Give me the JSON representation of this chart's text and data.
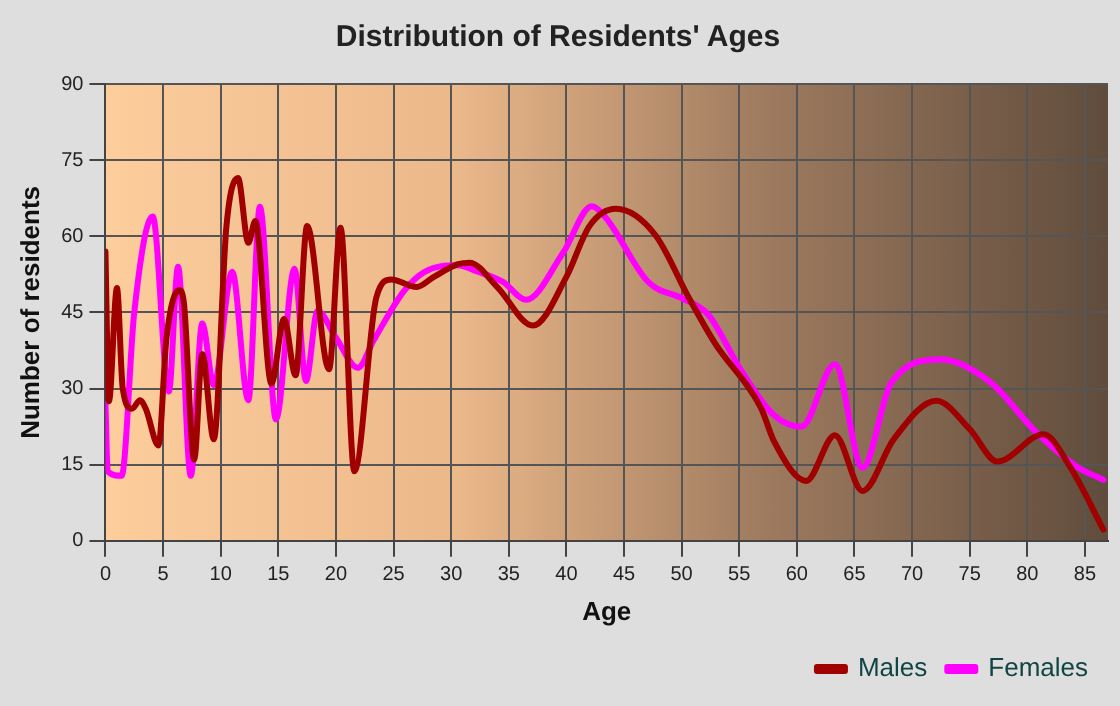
{
  "chart_data": {
    "type": "line",
    "title": "Distribution of Residents' Ages",
    "xlabel": "Age",
    "ylabel": "Number of residents",
    "xlim": [
      0,
      87
    ],
    "xticks": [
      0,
      5,
      10,
      15,
      20,
      25,
      30,
      35,
      40,
      45,
      50,
      55,
      60,
      65,
      70,
      75,
      80,
      85
    ],
    "ylim": [
      0,
      90
    ],
    "yticks": [
      0,
      15,
      30,
      45,
      60,
      75,
      90
    ],
    "grid": true,
    "legend": "bottom right",
    "marker": "none",
    "line_style": "solid",
    "series": [
      {
        "name": "Males",
        "color": "#a00000",
        "x": [
          0,
          0.3,
          1,
          1.5,
          2.3,
          3,
          3.5,
          4.6,
          5.3,
          6.4,
          6.8,
          7.7,
          8.4,
          9.4,
          10.5,
          11.5,
          12.4,
          13,
          14.4,
          15.5,
          16.5,
          17.5,
          19.4,
          20.4,
          21.6,
          23.5,
          24.8,
          27,
          28.5,
          30.6,
          31.6,
          34,
          37.1,
          40,
          42,
          44.3,
          47.7,
          50.6,
          52.9,
          56.9,
          58,
          60.8,
          63.3,
          65.7,
          68.4,
          72.1,
          75,
          77.4,
          81.4,
          83.7,
          86.6
        ],
        "values": [
          57,
          27.5,
          49.8,
          30,
          26,
          27.7,
          26,
          18.8,
          40,
          49.4,
          47,
          16,
          36.8,
          20,
          62,
          71.5,
          58.7,
          63,
          31,
          43.7,
          32.6,
          62,
          33.8,
          61.7,
          13.7,
          47.9,
          51.5,
          50,
          52,
          54.5,
          54.8,
          50,
          42.4,
          52,
          62,
          65.4,
          60.3,
          48,
          38.9,
          26.1,
          19.7,
          11.8,
          20.8,
          9.8,
          20,
          27.6,
          22,
          15.6,
          21,
          14.6,
          2.2
        ]
      },
      {
        "name": "Females",
        "color": "#ff00ff",
        "x": [
          0,
          0.2,
          1.4,
          2.5,
          4.1,
          5.5,
          6.3,
          7.4,
          8.4,
          9.4,
          11,
          12.4,
          13.4,
          14.8,
          16.4,
          17.4,
          18.4,
          20,
          21.9,
          23.3,
          25.9,
          27.7,
          30.6,
          32.2,
          34.5,
          36.5,
          39.7,
          42.2,
          43.4,
          47.1,
          50,
          52.3,
          55.1,
          58,
          60.4,
          63.3,
          65.7,
          68.2,
          72.5,
          76.8,
          80.8,
          84.3,
          86.6
        ],
        "values": [
          27,
          13.7,
          12.8,
          45,
          63.9,
          29.4,
          54,
          12.8,
          42.8,
          30.7,
          53,
          27.7,
          65.8,
          23.9,
          53.6,
          31.5,
          45.3,
          40,
          34.1,
          39.6,
          49.2,
          53,
          54.3,
          53.1,
          51,
          47.5,
          56.7,
          65.9,
          63.7,
          51,
          47.8,
          44.6,
          33.8,
          24.8,
          22.5,
          34.8,
          14.4,
          31.2,
          35.7,
          31.2,
          21.3,
          14.6,
          12
        ]
      }
    ]
  }
}
